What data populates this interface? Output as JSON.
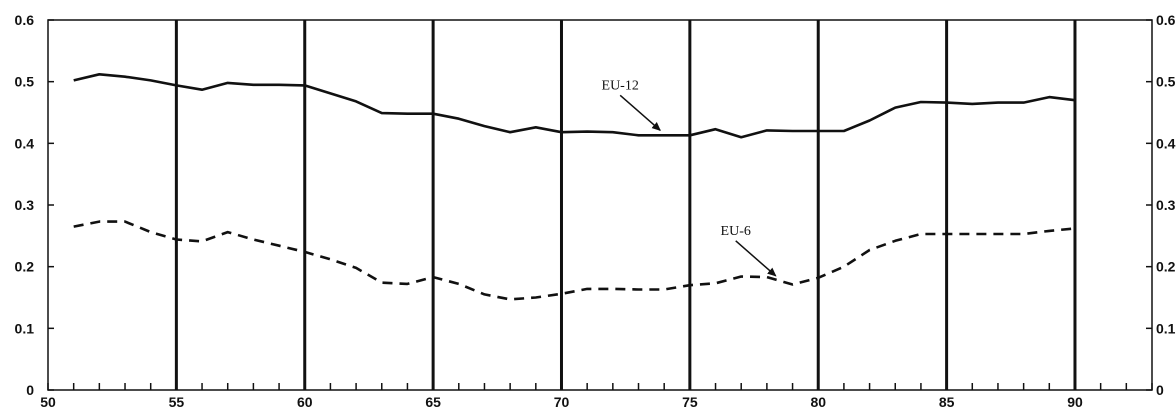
{
  "chart_data": {
    "type": "line",
    "title": "",
    "xlabel": "",
    "ylabel": "",
    "xlim": [
      50,
      93
    ],
    "ylim": [
      0,
      0.6
    ],
    "x_ticks": [
      50,
      55,
      60,
      65,
      70,
      75,
      80,
      85,
      90
    ],
    "x_tick_labels": [
      "50",
      "55",
      "60",
      "65",
      "70",
      "75",
      "80",
      "85",
      "90"
    ],
    "y_ticks": [
      0,
      0.1,
      0.2,
      0.3,
      0.4,
      0.5,
      0.6
    ],
    "y_tick_labels": [
      "0",
      "0.1",
      "0.2",
      "0.3",
      "0.4",
      "0.5",
      "0.6"
    ],
    "vertical_gridlines": [
      55,
      60,
      65,
      70,
      75,
      80,
      85,
      90
    ],
    "legend": "none",
    "series": [
      {
        "name": "EU-12",
        "style": "solid",
        "x": [
          51,
          52,
          53,
          54,
          55,
          56,
          57,
          58,
          59,
          60,
          61,
          62,
          63,
          64,
          65,
          66,
          67,
          68,
          69,
          70,
          71,
          72,
          73,
          74,
          75,
          76,
          77,
          78,
          79,
          80,
          81,
          82,
          83,
          84,
          85,
          86,
          87,
          88,
          89,
          90
        ],
        "values": [
          0.502,
          0.512,
          0.508,
          0.502,
          0.494,
          0.487,
          0.498,
          0.495,
          0.495,
          0.494,
          0.481,
          0.468,
          0.449,
          0.448,
          0.448,
          0.44,
          0.428,
          0.418,
          0.426,
          0.418,
          0.419,
          0.418,
          0.413,
          0.413,
          0.413,
          0.423,
          0.41,
          0.421,
          0.42,
          0.42,
          0.42,
          0.437,
          0.458,
          0.467,
          0.466,
          0.464,
          0.466,
          0.466,
          0.475,
          0.47
        ]
      },
      {
        "name": "EU-6",
        "style": "dashed",
        "x": [
          51,
          52,
          53,
          54,
          55,
          56,
          57,
          58,
          59,
          60,
          61,
          62,
          63,
          64,
          65,
          66,
          67,
          68,
          69,
          70,
          71,
          72,
          73,
          74,
          75,
          76,
          77,
          78,
          79,
          80,
          81,
          82,
          83,
          84,
          85,
          86,
          87,
          88,
          89,
          90
        ],
        "values": [
          0.265,
          0.273,
          0.273,
          0.256,
          0.244,
          0.241,
          0.256,
          0.244,
          0.234,
          0.224,
          0.212,
          0.198,
          0.174,
          0.172,
          0.183,
          0.172,
          0.155,
          0.147,
          0.15,
          0.156,
          0.164,
          0.164,
          0.163,
          0.163,
          0.17,
          0.173,
          0.184,
          0.183,
          0.171,
          0.182,
          0.2,
          0.227,
          0.242,
          0.253,
          0.253,
          0.253,
          0.253,
          0.253,
          0.258,
          0.262
        ]
      }
    ],
    "annotations": [
      {
        "text": "EU-12",
        "series": "EU-12",
        "arrow_to_x": 74
      },
      {
        "text": "EU-6",
        "series": "EU-6",
        "arrow_to_x": 78.5
      }
    ]
  }
}
